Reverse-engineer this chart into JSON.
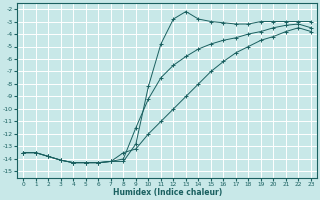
{
  "xlabel": "Humidex (Indice chaleur)",
  "bg_color": "#c8e8e8",
  "grid_color": "#ffffff",
  "line_color": "#1a6060",
  "xlim": [
    -0.5,
    23.5
  ],
  "ylim": [
    -15.5,
    -1.5
  ],
  "xticks": [
    0,
    1,
    2,
    3,
    4,
    5,
    6,
    7,
    8,
    9,
    10,
    11,
    12,
    13,
    14,
    15,
    16,
    17,
    18,
    19,
    20,
    21,
    22,
    23
  ],
  "yticks": [
    -15,
    -14,
    -13,
    -12,
    -11,
    -10,
    -9,
    -8,
    -7,
    -6,
    -5,
    -4,
    -3,
    -2
  ],
  "line1_x": [
    0,
    1,
    2,
    3,
    4,
    5,
    6,
    7,
    8,
    9,
    10,
    11,
    12,
    13,
    14,
    15,
    16,
    17,
    18,
    19,
    20,
    21,
    22,
    23
  ],
  "line1_y": [
    -13.5,
    -13.5,
    -13.8,
    -14.1,
    -14.3,
    -14.3,
    -14.3,
    -14.2,
    -14.2,
    -12.8,
    -8.2,
    -4.8,
    -2.8,
    -2.2,
    -2.8,
    -3.0,
    -3.1,
    -3.2,
    -3.2,
    -3.0,
    -3.0,
    -3.0,
    -3.0,
    -3.0
  ],
  "line2_x": [
    0,
    1,
    2,
    3,
    4,
    5,
    6,
    7,
    8,
    9,
    10,
    11,
    12,
    13,
    14,
    15,
    16,
    17,
    18,
    19,
    20,
    21,
    22,
    23
  ],
  "line2_y": [
    -13.5,
    -13.5,
    -13.8,
    -14.1,
    -14.3,
    -14.3,
    -14.3,
    -14.2,
    -14.0,
    -11.5,
    -9.2,
    -7.5,
    -6.5,
    -5.8,
    -5.2,
    -4.8,
    -4.5,
    -4.3,
    -4.0,
    -3.8,
    -3.5,
    -3.3,
    -3.2,
    -3.5
  ],
  "line3_x": [
    0,
    1,
    2,
    3,
    4,
    5,
    6,
    7,
    8,
    9,
    10,
    11,
    12,
    13,
    14,
    15,
    16,
    17,
    18,
    19,
    20,
    21,
    22,
    23
  ],
  "line3_y": [
    -13.5,
    -13.5,
    -13.8,
    -14.1,
    -14.3,
    -14.3,
    -14.3,
    -14.2,
    -13.5,
    -13.2,
    -12.0,
    -11.0,
    -10.0,
    -9.0,
    -8.0,
    -7.0,
    -6.2,
    -5.5,
    -5.0,
    -4.5,
    -4.2,
    -3.8,
    -3.5,
    -3.8
  ]
}
